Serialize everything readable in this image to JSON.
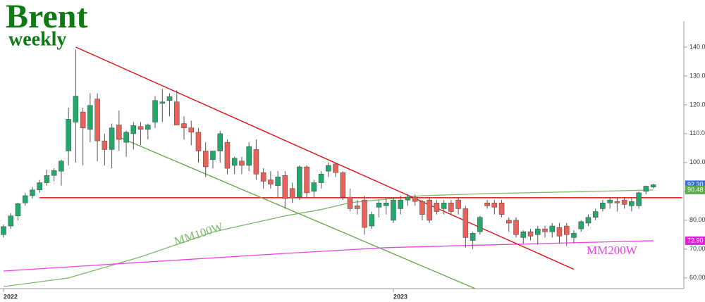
{
  "chart_data": {
    "type": "candlestick",
    "title": "Brent",
    "subtitle": "weekly",
    "up_color": "#22a86a",
    "down_color": "#e8625a",
    "categories": [
      "2022",
      null,
      null,
      null,
      null,
      null,
      null,
      null,
      null,
      null,
      null,
      null,
      null,
      null,
      null,
      null,
      null,
      null,
      null,
      null,
      null,
      null,
      null,
      null,
      null,
      null,
      null,
      null,
      null,
      null,
      null,
      null,
      null,
      null,
      null,
      null,
      null,
      null,
      null,
      null,
      null,
      null,
      null,
      null,
      null,
      null,
      null,
      null,
      null,
      null,
      null,
      null,
      null,
      null,
      "2023",
      null,
      null,
      null,
      null,
      null,
      null,
      null,
      null,
      null,
      null,
      null,
      null,
      null,
      null,
      null,
      null,
      null,
      null,
      null,
      null,
      null,
      null,
      null,
      null,
      null,
      null,
      null,
      null,
      null,
      null,
      null,
      null,
      null,
      null,
      null,
      null
    ],
    "open": [
      75,
      78,
      81.5,
      86,
      88.5,
      90.5,
      93,
      95.5,
      97,
      104,
      114,
      117.5,
      111.5,
      122,
      107.5,
      104.5,
      113,
      107,
      110,
      112.5,
      111.5,
      114,
      120.5,
      121.5,
      121,
      113.5,
      112,
      110.5,
      104,
      101,
      104,
      107,
      99,
      100.5,
      99,
      104.5,
      96.5,
      94,
      92,
      95.5,
      91,
      88,
      98.5,
      90,
      93,
      97,
      99.5,
      96.5,
      88,
      85,
      87,
      78,
      84.5,
      85,
      80,
      84,
      87,
      88,
      86.5,
      87,
      86,
      84,
      86,
      87,
      84,
      73,
      76,
      86,
      86,
      86,
      80,
      80,
      74,
      76,
      75,
      77,
      76,
      77.5,
      78,
      74,
      77,
      79,
      81,
      84,
      86,
      86.5,
      87,
      85,
      85,
      90,
      91.5
    ],
    "high": [
      78.5,
      82.5,
      86,
      89.5,
      91.5,
      94,
      97.5,
      98,
      101,
      119,
      139.1,
      119,
      124,
      124,
      110,
      113.5,
      118,
      111,
      114,
      114,
      113.5,
      123,
      125.5,
      124,
      125,
      116,
      114.5,
      112,
      107,
      104,
      111,
      108,
      102,
      102,
      107,
      108,
      98,
      97,
      97,
      97,
      93,
      99,
      99,
      94,
      97,
      100,
      100,
      97,
      91,
      87,
      88.5,
      83,
      87,
      87.5,
      88,
      88.5,
      89,
      89,
      87,
      88,
      87,
      87,
      87,
      88,
      85,
      76,
      81.5,
      87,
      87,
      87,
      81,
      81,
      76.5,
      77,
      78,
      78,
      79,
      79,
      79,
      76.5,
      80,
      82,
      84,
      87,
      88,
      88,
      88,
      88,
      90,
      92,
      92.6
    ],
    "low": [
      74,
      77,
      80,
      85,
      87.5,
      89.5,
      92,
      93.5,
      92,
      99,
      100,
      99,
      107,
      100.5,
      99,
      98,
      104,
      102,
      104.5,
      106,
      108,
      112,
      114,
      116,
      113,
      108,
      106,
      100,
      95,
      98,
      100,
      96,
      96,
      96,
      97,
      94,
      91,
      91,
      88,
      84,
      86,
      87,
      88,
      88,
      91,
      95,
      95,
      87,
      83,
      82,
      75,
      77,
      81,
      82,
      79,
      82,
      85,
      85,
      80,
      79,
      82,
      82,
      82,
      82,
      70.5,
      70,
      75,
      84,
      82,
      81,
      76,
      74,
      72,
      73,
      71.5,
      74,
      74,
      72,
      71,
      72,
      76,
      78,
      80,
      83,
      84,
      83,
      84,
      83,
      84,
      89,
      91
    ],
    "close": [
      77.8,
      81.5,
      85.8,
      88.5,
      90.5,
      93,
      95.5,
      97.2,
      100.5,
      115,
      123,
      112,
      119.8,
      107.5,
      104.5,
      112,
      108,
      110.5,
      112.8,
      111.5,
      113,
      121.5,
      121,
      122.8,
      113,
      112,
      110.5,
      104,
      98.5,
      104,
      110,
      98,
      101.5,
      99,
      105.5,
      96,
      93.5,
      92.5,
      95,
      87.5,
      87.7,
      98.5,
      89.5,
      93,
      96,
      99,
      96.5,
      88,
      84,
      84,
      77.5,
      82,
      86,
      86,
      87,
      87,
      88,
      86.5,
      82,
      80,
      83,
      86,
      83,
      84,
      74,
      75.5,
      81,
      85,
      84.5,
      82,
      79,
      75,
      76,
      74.5,
      77,
      76,
      78,
      74.5,
      75,
      75.5,
      79.5,
      81,
      83,
      86,
      87,
      86,
      85.5,
      86.5,
      89.5,
      91.8,
      92.3
    ],
    "ylim": [
      56.3,
      149
    ],
    "yticks": [
      {
        "value": 60,
        "label": "60.00"
      },
      {
        "value": 70,
        "label": "70.00"
      },
      {
        "value": 80,
        "label": "80.00"
      },
      {
        "value": 90,
        "label": "90.00"
      },
      {
        "value": 100,
        "label": "100.00"
      },
      {
        "value": 110,
        "label": "110.00"
      },
      {
        "value": 120,
        "label": "120.00"
      },
      {
        "value": 130,
        "label": "130.00"
      },
      {
        "value": 140,
        "label": "140.00"
      }
    ],
    "moving_averages": [
      {
        "name": "MM100W",
        "color": "#7db86a",
        "x": [
          0,
          9,
          19,
          29,
          39,
          44,
          48,
          53,
          58,
          68,
          78,
          90
        ],
        "values": [
          57,
          60,
          67.3,
          75.9,
          81.5,
          83.7,
          86.1,
          87.3,
          88.5,
          89.3,
          89.8,
          90.48
        ]
      },
      {
        "name": "MM200W",
        "color": "#f040e8",
        "x": [
          0,
          19,
          39,
          53,
          68,
          90
        ],
        "values": [
          62.4,
          65.4,
          68.5,
          70.5,
          71.5,
          72.9
        ]
      }
    ],
    "trendlines": [
      {
        "color": "#e01010",
        "x": [
          10,
          79
        ],
        "values": [
          140,
          63
        ]
      },
      {
        "color": "#e01010",
        "x": [
          5,
          94
        ],
        "values": [
          87.8,
          87.8
        ]
      },
      {
        "color": "#6aa84f",
        "x": [
          16,
          66
        ],
        "values": [
          108.8,
          55.6
        ]
      }
    ],
    "price_labels": [
      {
        "value": 92.3,
        "label": "92.30",
        "color": "#3a6fd8"
      },
      {
        "value": 90.48,
        "label": "90.48",
        "color": "#5aa84a"
      },
      {
        "value": 72.9,
        "label": "72.90",
        "color": "#e020d8"
      }
    ]
  }
}
